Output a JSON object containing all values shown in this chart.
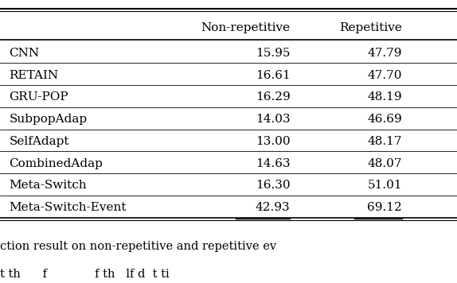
{
  "col_headers": [
    "",
    "Non-repetitive",
    "Repetitive"
  ],
  "rows": [
    {
      "method": "CNN",
      "non_rep": "15.95",
      "rep": "47.79",
      "underline": false
    },
    {
      "method": "RETAIN",
      "non_rep": "16.61",
      "rep": "47.70",
      "underline": false
    },
    {
      "method": "GRU-POP",
      "non_rep": "16.29",
      "rep": "48.19",
      "underline": false
    },
    {
      "method": "SubpopAdap",
      "non_rep": "14.03",
      "rep": "46.69",
      "underline": false
    },
    {
      "method": "SelfAdapt",
      "non_rep": "13.00",
      "rep": "48.17",
      "underline": false
    },
    {
      "method": "CombinedAdap",
      "non_rep": "14.63",
      "rep": "48.07",
      "underline": false
    },
    {
      "method": "Meta-Switch",
      "non_rep": "16.30",
      "rep": "51.01",
      "underline": false
    },
    {
      "method": "Meta-Switch-Event",
      "non_rep": "42.93",
      "rep": "69.12",
      "underline": true
    }
  ],
  "caption_line1": "ction result on non-repetitive and repetitive ev",
  "caption_line2": "t th      f             f th   lf d  t ti",
  "font_size": 11,
  "fig_width": 5.74,
  "fig_height": 3.56,
  "dpi": 100
}
